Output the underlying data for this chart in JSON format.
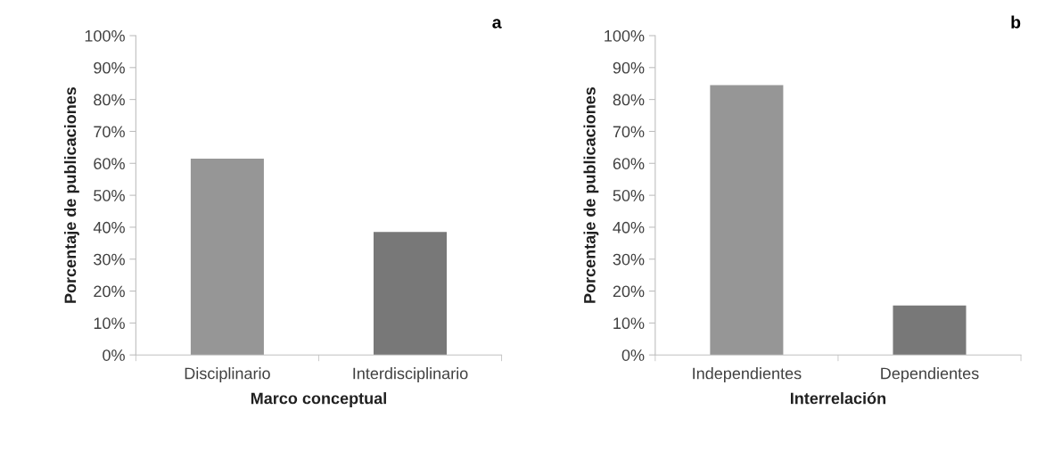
{
  "chart_data": [
    {
      "type": "bar",
      "title": "a",
      "xlabel": "Marco conceptual",
      "ylabel": "Porcentaje de publicaciones",
      "categories": [
        "Disciplinario",
        "Interdisciplinario"
      ],
      "values": [
        61.5,
        38.5
      ],
      "colors": [
        "#969696",
        "#787878"
      ],
      "ylim": [
        0,
        100
      ],
      "yticks": [
        {
          "value": 0,
          "label": "0%"
        },
        {
          "value": 10,
          "label": "10%"
        },
        {
          "value": 20,
          "label": "20%"
        },
        {
          "value": 30,
          "label": "30%"
        },
        {
          "value": 40,
          "label": "40%"
        },
        {
          "value": 50,
          "label": "50%"
        },
        {
          "value": 60,
          "label": "60%"
        },
        {
          "value": 70,
          "label": "70%"
        },
        {
          "value": 80,
          "label": "80%"
        },
        {
          "value": 90,
          "label": "90%"
        },
        {
          "value": 100,
          "label": "100%"
        }
      ],
      "grid": false,
      "legend": false
    },
    {
      "type": "bar",
      "title": "b",
      "xlabel": "Interrelación",
      "ylabel": "Porcentaje de publicaciones",
      "categories": [
        "Independientes",
        "Dependientes"
      ],
      "values": [
        84.5,
        15.5
      ],
      "colors": [
        "#969696",
        "#787878"
      ],
      "ylim": [
        0,
        100
      ],
      "yticks": [
        {
          "value": 0,
          "label": "0%"
        },
        {
          "value": 10,
          "label": "10%"
        },
        {
          "value": 20,
          "label": "20%"
        },
        {
          "value": 30,
          "label": "30%"
        },
        {
          "value": 40,
          "label": "40%"
        },
        {
          "value": 50,
          "label": "50%"
        },
        {
          "value": 60,
          "label": "60%"
        },
        {
          "value": 70,
          "label": "70%"
        },
        {
          "value": 80,
          "label": "80%"
        },
        {
          "value": 90,
          "label": "90%"
        },
        {
          "value": 100,
          "label": "100%"
        }
      ],
      "grid": false,
      "legend": false
    }
  ]
}
